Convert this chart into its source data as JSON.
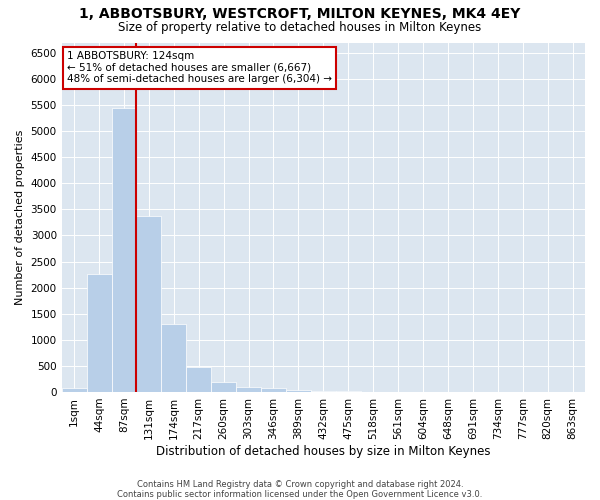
{
  "title": "1, ABBOTSBURY, WESTCROFT, MILTON KEYNES, MK4 4EY",
  "subtitle": "Size of property relative to detached houses in Milton Keynes",
  "xlabel": "Distribution of detached houses by size in Milton Keynes",
  "ylabel": "Number of detached properties",
  "bar_labels": [
    "1sqm",
    "44sqm",
    "87sqm",
    "131sqm",
    "174sqm",
    "217sqm",
    "260sqm",
    "303sqm",
    "346sqm",
    "389sqm",
    "432sqm",
    "475sqm",
    "518sqm",
    "561sqm",
    "604sqm",
    "648sqm",
    "691sqm",
    "734sqm",
    "777sqm",
    "820sqm",
    "863sqm"
  ],
  "bar_values": [
    75,
    2270,
    5450,
    3380,
    1295,
    475,
    195,
    100,
    75,
    40,
    20,
    10,
    5,
    0,
    0,
    0,
    0,
    0,
    0,
    0,
    0
  ],
  "bar_color": "#b8cfe8",
  "bar_edgecolor": "#b8cfe8",
  "vline_color": "#cc0000",
  "annotation_text": "1 ABBOTSBURY: 124sqm\n← 51% of detached houses are smaller (6,667)\n48% of semi-detached houses are larger (6,304) →",
  "annotation_box_color": "white",
  "annotation_box_edgecolor": "#cc0000",
  "ylim": [
    0,
    6700
  ],
  "yticks": [
    0,
    500,
    1000,
    1500,
    2000,
    2500,
    3000,
    3500,
    4000,
    4500,
    5000,
    5500,
    6000,
    6500
  ],
  "background_color": "#dce6f0",
  "footer_text": "Contains HM Land Registry data © Crown copyright and database right 2024.\nContains public sector information licensed under the Open Government Licence v3.0.",
  "title_fontsize": 10,
  "subtitle_fontsize": 8.5,
  "xlabel_fontsize": 8.5,
  "ylabel_fontsize": 8,
  "tick_fontsize": 7.5,
  "annot_fontsize": 7.5,
  "footer_fontsize": 6,
  "vline_x_index": 2.5
}
